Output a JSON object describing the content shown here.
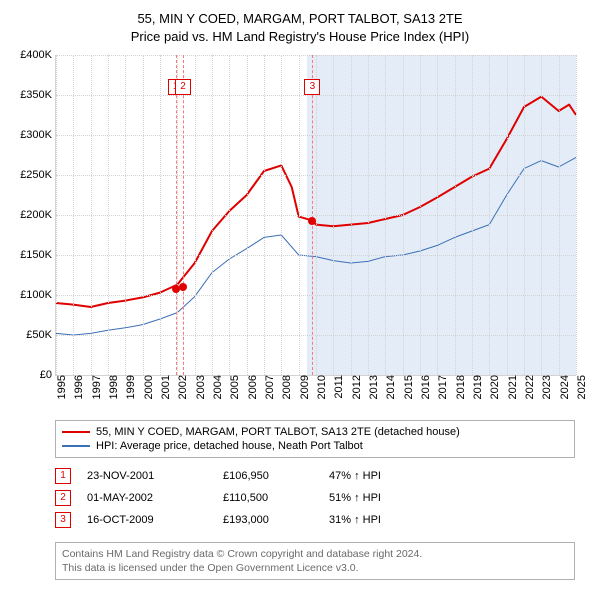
{
  "title": {
    "line1": "55, MIN Y COED, MARGAM, PORT TALBOT, SA13 2TE",
    "line2": "Price paid vs. HM Land Registry's House Price Index (HPI)",
    "fontsize": 13
  },
  "chart": {
    "type": "line",
    "background_color": "#ffffff",
    "grid_color": "#d3d3d3",
    "x": {
      "min": 1995,
      "max": 2025,
      "step": 1
    },
    "y": {
      "min": 0,
      "max": 400000,
      "step": 50000,
      "tick_labels": [
        "£0",
        "£50K",
        "£100K",
        "£150K",
        "£200K",
        "£250K",
        "£300K",
        "£350K",
        "£400K"
      ]
    },
    "shade": {
      "from": 2009.5,
      "to": 2025,
      "color": "rgba(122,165,216,0.20)"
    },
    "series": [
      {
        "id": "price_paid",
        "label": "55, MIN Y COED, MARGAM, PORT TALBOT, SA13 2TE (detached house)",
        "color": "#e00000",
        "width": 2,
        "points": [
          [
            1995,
            90000
          ],
          [
            1996,
            88000
          ],
          [
            1997,
            85000
          ],
          [
            1998,
            90000
          ],
          [
            1999,
            93000
          ],
          [
            2000,
            97000
          ],
          [
            2001,
            103000
          ],
          [
            2002,
            113000
          ],
          [
            2003,
            140000
          ],
          [
            2004,
            180000
          ],
          [
            2005,
            205000
          ],
          [
            2006,
            225000
          ],
          [
            2007,
            255000
          ],
          [
            2008,
            262000
          ],
          [
            2008.6,
            235000
          ],
          [
            2009,
            198000
          ],
          [
            2009.8,
            193000
          ],
          [
            2010,
            188000
          ],
          [
            2011,
            186000
          ],
          [
            2012,
            188000
          ],
          [
            2013,
            190000
          ],
          [
            2014,
            195000
          ],
          [
            2015,
            200000
          ],
          [
            2016,
            210000
          ],
          [
            2017,
            222000
          ],
          [
            2018,
            235000
          ],
          [
            2019,
            248000
          ],
          [
            2020,
            258000
          ],
          [
            2021,
            295000
          ],
          [
            2022,
            335000
          ],
          [
            2023,
            348000
          ],
          [
            2024,
            330000
          ],
          [
            2024.6,
            338000
          ],
          [
            2025,
            325000
          ]
        ]
      },
      {
        "id": "hpi",
        "label": "HPI: Average price, detached house, Neath Port Talbot",
        "color": "#3b6fb6",
        "width": 1,
        "points": [
          [
            1995,
            52000
          ],
          [
            1996,
            50000
          ],
          [
            1997,
            52000
          ],
          [
            1998,
            56000
          ],
          [
            1999,
            59000
          ],
          [
            2000,
            63000
          ],
          [
            2001,
            70000
          ],
          [
            2002,
            78000
          ],
          [
            2003,
            98000
          ],
          [
            2004,
            128000
          ],
          [
            2005,
            145000
          ],
          [
            2006,
            158000
          ],
          [
            2007,
            172000
          ],
          [
            2008,
            175000
          ],
          [
            2009,
            150000
          ],
          [
            2010,
            148000
          ],
          [
            2011,
            143000
          ],
          [
            2012,
            140000
          ],
          [
            2013,
            142000
          ],
          [
            2014,
            148000
          ],
          [
            2015,
            150000
          ],
          [
            2016,
            155000
          ],
          [
            2017,
            162000
          ],
          [
            2018,
            172000
          ],
          [
            2019,
            180000
          ],
          [
            2020,
            188000
          ],
          [
            2021,
            225000
          ],
          [
            2022,
            258000
          ],
          [
            2023,
            268000
          ],
          [
            2024,
            260000
          ],
          [
            2025,
            272000
          ]
        ]
      }
    ],
    "event_lines": [
      {
        "x": 2001.9,
        "label": "1",
        "dot_y": 106950
      },
      {
        "x": 2002.33,
        "label": "2",
        "dot_y": 110500
      },
      {
        "x": 2009.79,
        "label": "3",
        "dot_y": 193000
      }
    ],
    "marker_color": "#e00000",
    "marker_box_top_y": 370000
  },
  "legend": {
    "items": [
      {
        "series": "price_paid"
      },
      {
        "series": "hpi"
      }
    ]
  },
  "transactions": [
    {
      "n": "1",
      "date": "23-NOV-2001",
      "price": "£106,950",
      "delta": "47% ↑ HPI"
    },
    {
      "n": "2",
      "date": "01-MAY-2002",
      "price": "£110,500",
      "delta": "51% ↑ HPI"
    },
    {
      "n": "3",
      "date": "16-OCT-2009",
      "price": "£193,000",
      "delta": "31% ↑ HPI"
    }
  ],
  "footer": {
    "line1": "Contains HM Land Registry data © Crown copyright and database right 2024.",
    "line2": "This data is licensed under the Open Government Licence v3.0."
  }
}
